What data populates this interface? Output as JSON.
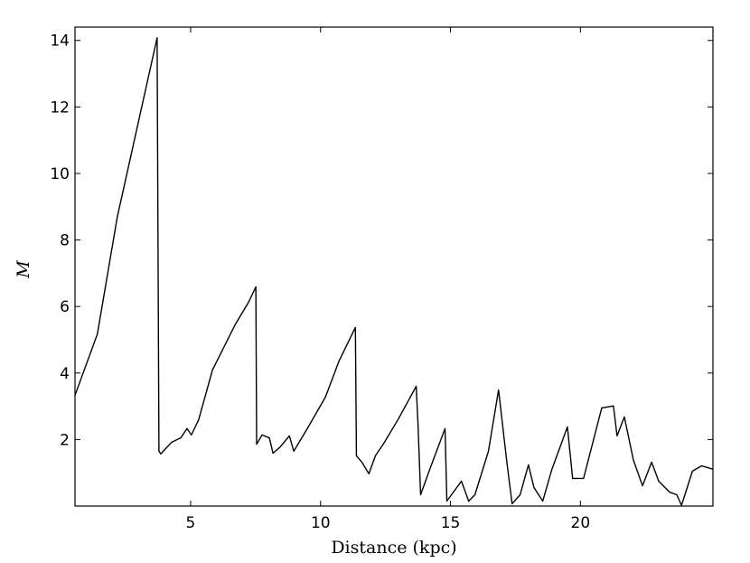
{
  "chart_data": {
    "type": "line",
    "x_label": "Distance (kpc)",
    "y_label": "M",
    "xlim": [
      0.55,
      25.1
    ],
    "ylim": [
      0,
      14.4
    ],
    "xticks": [
      5,
      10,
      15,
      20
    ],
    "yticks": [
      2,
      4,
      6,
      8,
      10,
      12,
      14
    ],
    "grid": false,
    "series": [
      {
        "color": "#000000",
        "x": [
          0.55,
          1.41,
          2.18,
          3.71,
          3.78,
          3.85,
          4.27,
          4.62,
          4.86,
          5.03,
          5.31,
          5.84,
          6.71,
          7.23,
          7.51,
          7.54,
          7.75,
          8.03,
          8.17,
          8.45,
          8.8,
          8.97,
          9.49,
          10.19,
          10.71,
          11.34,
          11.38,
          11.59,
          11.86,
          12.11,
          12.46,
          12.98,
          13.68,
          13.75,
          13.85,
          14.2,
          14.79,
          14.86,
          15.42,
          15.7,
          15.94,
          16.46,
          16.85,
          17.16,
          17.37,
          17.68,
          18.0,
          18.21,
          18.55,
          18.9,
          19.5,
          19.7,
          20.12,
          20.82,
          21.27,
          21.41,
          21.69,
          22.04,
          22.39,
          22.74,
          23.01,
          23.43,
          23.71,
          23.89,
          24.31,
          24.66,
          25.1
        ],
        "values": [
          3.33,
          5.17,
          8.7,
          14.08,
          1.65,
          1.57,
          1.92,
          2.05,
          2.33,
          2.14,
          2.6,
          4.09,
          5.45,
          6.13,
          6.59,
          1.86,
          2.14,
          2.05,
          1.59,
          1.78,
          2.11,
          1.65,
          2.33,
          3.28,
          4.36,
          5.37,
          1.51,
          1.32,
          0.97,
          1.51,
          1.92,
          2.6,
          3.6,
          2.46,
          0.34,
          1.1,
          2.33,
          0.15,
          0.75,
          0.15,
          0.34,
          1.65,
          3.49,
          1.38,
          0.07,
          0.34,
          1.24,
          0.56,
          0.15,
          1.1,
          2.38,
          0.83,
          0.83,
          2.95,
          3.01,
          2.11,
          2.68,
          1.38,
          0.61,
          1.32,
          0.75,
          0.42,
          0.34,
          0.02,
          1.05,
          1.21,
          1.11
        ]
      }
    ]
  }
}
